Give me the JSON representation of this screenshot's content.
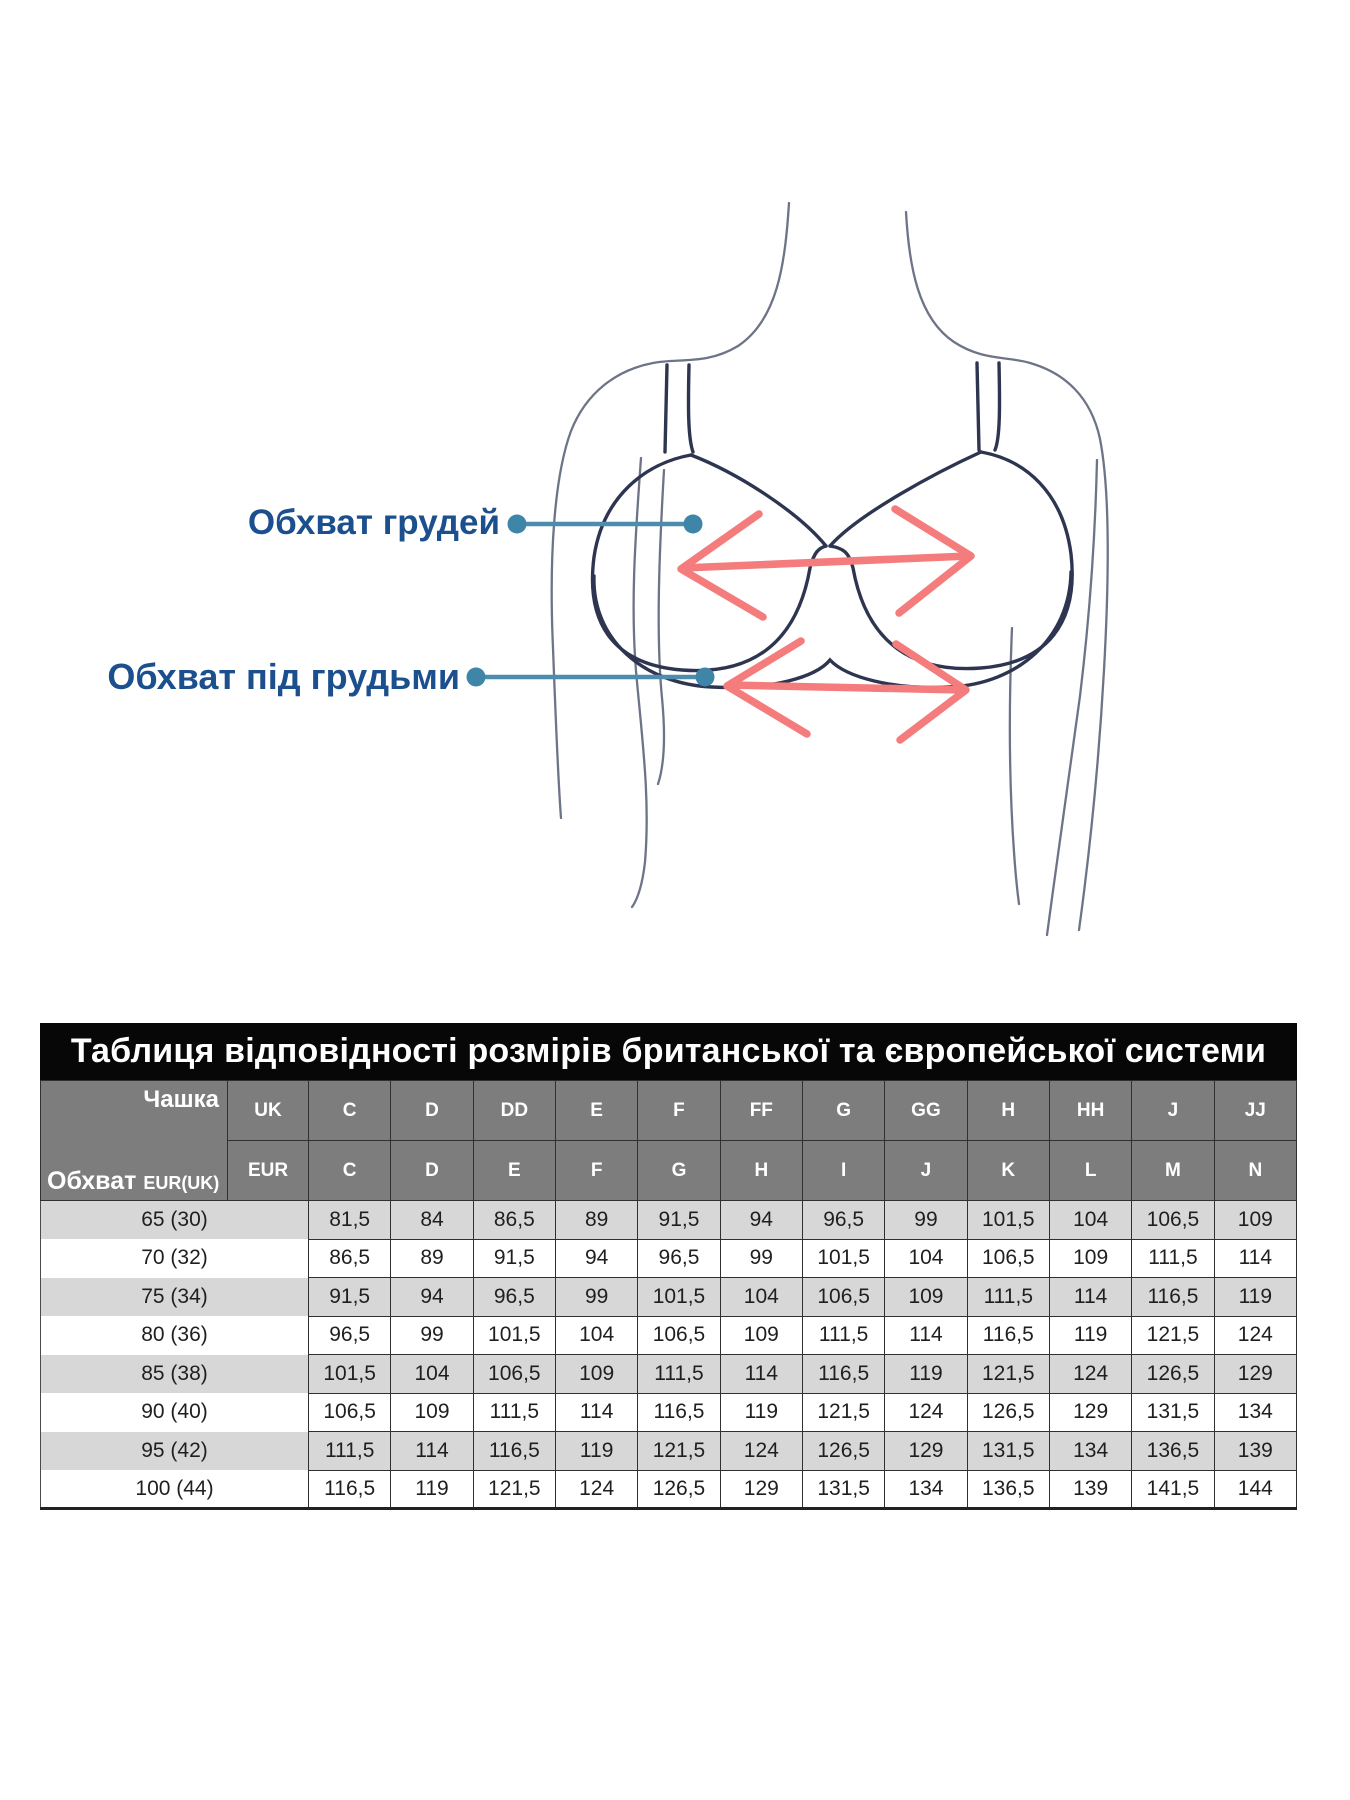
{
  "diagram": {
    "figure": "woman-torso-bra-line-art",
    "bust_label": "Обхват грудей",
    "underbust_label": "Обхват під грудьми",
    "colors": {
      "label_text": "#1c4f8e",
      "connector_line": "#4e8cad",
      "connector_dot": "#3f85a8",
      "measure_arrow": "#f47c7c",
      "body_outline": "#6e7488",
      "bra_outline": "#2e3550"
    }
  },
  "table": {
    "title": "Таблиця відповідності розмірів британської та європейської системи",
    "corner": {
      "cup_label": "Чашка",
      "girth_label": "Обхват",
      "girth_sub": "EUR(UK)"
    },
    "header_rows": [
      {
        "label": "UK",
        "cups": [
          "C",
          "D",
          "DD",
          "E",
          "F",
          "FF",
          "G",
          "GG",
          "H",
          "HH",
          "J",
          "JJ"
        ]
      },
      {
        "label": "EUR",
        "cups": [
          "C",
          "D",
          "E",
          "F",
          "G",
          "H",
          "I",
          "J",
          "K",
          "L",
          "M",
          "N"
        ]
      }
    ],
    "rows": [
      {
        "size": "65 (30)",
        "values": [
          "81,5",
          "84",
          "86,5",
          "89",
          "91,5",
          "94",
          "96,5",
          "99",
          "101,5",
          "104",
          "106,5",
          "109"
        ]
      },
      {
        "size": "70 (32)",
        "values": [
          "86,5",
          "89",
          "91,5",
          "94",
          "96,5",
          "99",
          "101,5",
          "104",
          "106,5",
          "109",
          "111,5",
          "114"
        ]
      },
      {
        "size": "75 (34)",
        "values": [
          "91,5",
          "94",
          "96,5",
          "99",
          "101,5",
          "104",
          "106,5",
          "109",
          "111,5",
          "114",
          "116,5",
          "119"
        ]
      },
      {
        "size": "80 (36)",
        "values": [
          "96,5",
          "99",
          "101,5",
          "104",
          "106,5",
          "109",
          "111,5",
          "114",
          "116,5",
          "119",
          "121,5",
          "124"
        ]
      },
      {
        "size": "85 (38)",
        "values": [
          "101,5",
          "104",
          "106,5",
          "109",
          "111,5",
          "114",
          "116,5",
          "119",
          "121,5",
          "124",
          "126,5",
          "129"
        ]
      },
      {
        "size": "90 (40)",
        "values": [
          "106,5",
          "109",
          "111,5",
          "114",
          "116,5",
          "119",
          "121,5",
          "124",
          "126,5",
          "129",
          "131,5",
          "134"
        ]
      },
      {
        "size": "95 (42)",
        "values": [
          "111,5",
          "114",
          "116,5",
          "119",
          "121,5",
          "124",
          "126,5",
          "129",
          "131,5",
          "134",
          "136,5",
          "139"
        ]
      },
      {
        "size": "100 (44)",
        "values": [
          "116,5",
          "119",
          "121,5",
          "124",
          "126,5",
          "129",
          "131,5",
          "134",
          "136,5",
          "139",
          "141,5",
          "144"
        ]
      }
    ],
    "colors": {
      "title_bg": "#070707",
      "title_text": "#ffffff",
      "header_bg": "#7d7d7d",
      "header_text": "#ffffff",
      "alt_row_bg": "#d7d7d7",
      "cell_text": "#1f1f1f",
      "border": "#303030"
    }
  }
}
